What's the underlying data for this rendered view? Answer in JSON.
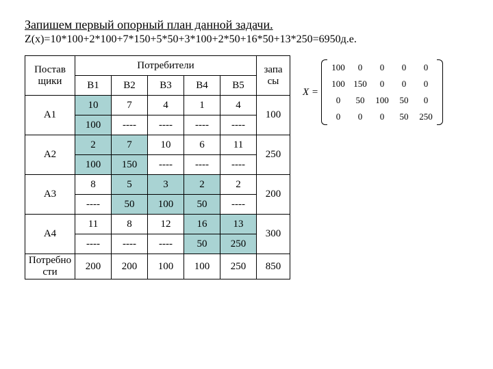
{
  "title": "Запишем первый опорный план данной задачи.",
  "formula": "Z(x)=10*100+2*100+7*150+5*50+3*100+2*50+16*50+13*250=6950д.е.",
  "headers": {
    "suppliers": "Постав\nщики",
    "consumers": "Потребители",
    "stocks": "запа\nсы",
    "b": [
      "B1",
      "B2",
      "B3",
      "B4",
      "B5"
    ],
    "a": [
      "A1",
      "A2",
      "A3",
      "A4"
    ],
    "needs": "Потребно\nсти"
  },
  "costs": [
    [
      10,
      7,
      4,
      1,
      4
    ],
    [
      2,
      7,
      10,
      6,
      11
    ],
    [
      8,
      5,
      3,
      2,
      2
    ],
    [
      11,
      8,
      12,
      16,
      13
    ]
  ],
  "alloc": [
    [
      "100",
      "----",
      "----",
      "----",
      "----"
    ],
    [
      "100",
      "150",
      "----",
      "----",
      "----"
    ],
    [
      "----",
      "50",
      "100",
      "50",
      "----"
    ],
    [
      "----",
      "----",
      "----",
      "50",
      "250"
    ]
  ],
  "filled": [
    [
      true,
      false,
      false,
      false,
      false
    ],
    [
      true,
      true,
      false,
      false,
      false
    ],
    [
      false,
      true,
      true,
      true,
      false
    ],
    [
      false,
      false,
      false,
      true,
      true
    ]
  ],
  "stocks": [
    100,
    250,
    200,
    300
  ],
  "needs": [
    200,
    200,
    100,
    100,
    250,
    850
  ],
  "matrix": {
    "label": "X =",
    "rows": [
      [
        100,
        0,
        0,
        0,
        0
      ],
      [
        100,
        150,
        0,
        0,
        0
      ],
      [
        0,
        50,
        100,
        50,
        0
      ],
      [
        0,
        0,
        0,
        50,
        250
      ]
    ]
  },
  "style": {
    "filled_color": "#a9d3d3",
    "border_color": "#000000",
    "font_family": "Times New Roman",
    "title_fontsize": 18,
    "body_fontsize": 16
  }
}
